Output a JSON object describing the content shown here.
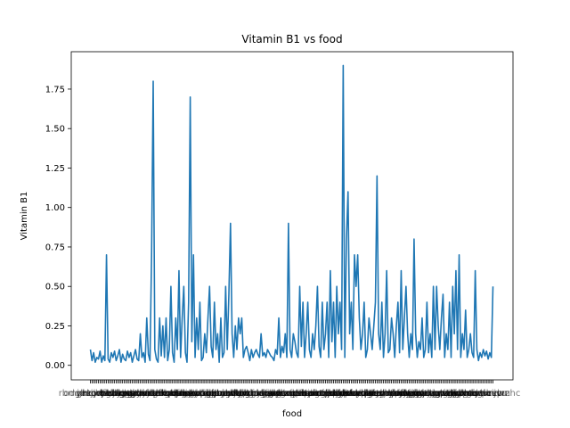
{
  "chart_data": {
    "type": "line",
    "title": "Vitamin B1 vs food",
    "xlabel": "food",
    "ylabel": "Vitamin B1",
    "ylim": [
      -0.092,
      1.987
    ],
    "y_ticks": [
      "0.00",
      "0.25",
      "0.50",
      "0.75",
      "1.00",
      "1.25",
      "1.50",
      "1.75"
    ],
    "grid": false,
    "legend": "none",
    "color": "#1f77b4",
    "x_tick_labels_note": "",
    "series": [
      {
        "values": [
          0.1,
          0.03,
          0.08,
          0.02,
          0.05,
          0.04,
          0.09,
          0.02,
          0.06,
          0.03,
          0.7,
          0.04,
          0.02,
          0.08,
          0.05,
          0.09,
          0.03,
          0.06,
          0.1,
          0.02,
          0.07,
          0.04,
          0.03,
          0.09,
          0.05,
          0.08,
          0.02,
          0.06,
          0.1,
          0.04,
          0.03,
          0.2,
          0.05,
          0.08,
          0.02,
          0.3,
          0.07,
          0.03,
          0.7,
          1.8,
          0.1,
          0.04,
          0.02,
          0.3,
          0.06,
          0.25,
          0.05,
          0.3,
          0.03,
          0.1,
          0.5,
          0.08,
          0.02,
          0.3,
          0.1,
          0.6,
          0.05,
          0.3,
          0.5,
          0.08,
          0.02,
          0.4,
          1.7,
          0.15,
          0.7,
          0.05,
          0.3,
          0.1,
          0.4,
          0.03,
          0.05,
          0.2,
          0.08,
          0.3,
          0.5,
          0.12,
          0.05,
          0.4,
          0.1,
          0.2,
          0.02,
          0.3,
          0.05,
          0.08,
          0.5,
          0.1,
          0.45,
          0.9,
          0.2,
          0.05,
          0.25,
          0.1,
          0.3,
          0.2,
          0.3,
          0.05,
          0.1,
          0.12,
          0.08,
          0.03,
          0.1,
          0.05,
          0.08,
          0.1,
          0.07,
          0.05,
          0.2,
          0.06,
          0.08,
          0.05,
          0.1,
          0.08,
          0.06,
          0.05,
          0.03,
          0.1,
          0.07,
          0.3,
          0.05,
          0.12,
          0.08,
          0.2,
          0.05,
          0.9,
          0.1,
          0.05,
          0.2,
          0.15,
          0.08,
          0.05,
          0.5,
          0.12,
          0.4,
          0.05,
          0.2,
          0.4,
          0.1,
          0.05,
          0.2,
          0.1,
          0.25,
          0.5,
          0.12,
          0.05,
          0.4,
          0.1,
          0.2,
          0.4,
          0.05,
          0.6,
          0.15,
          0.4,
          0.05,
          0.5,
          0.2,
          0.4,
          0.1,
          1.9,
          0.05,
          0.8,
          1.1,
          0.2,
          0.4,
          0.1,
          0.7,
          0.5,
          0.7,
          0.3,
          0.1,
          0.2,
          0.4,
          0.05,
          0.1,
          0.3,
          0.2,
          0.1,
          0.25,
          0.4,
          1.2,
          0.2,
          0.1,
          0.4,
          0.05,
          0.2,
          0.6,
          0.08,
          0.1,
          0.3,
          0.2,
          0.05,
          0.25,
          0.4,
          0.08,
          0.6,
          0.1,
          0.3,
          0.5,
          0.2,
          0.05,
          0.2,
          0.1,
          0.8,
          0.2,
          0.05,
          0.15,
          0.1,
          0.3,
          0.05,
          0.1,
          0.4,
          0.08,
          0.2,
          0.05,
          0.5,
          0.1,
          0.5,
          0.25,
          0.1,
          0.3,
          0.45,
          0.05,
          0.2,
          0.1,
          0.4,
          0.05,
          0.5,
          0.2,
          0.6,
          0.1,
          0.7,
          0.05,
          0.2,
          0.1,
          0.35,
          0.05,
          0.1,
          0.2,
          0.08,
          0.05,
          0.6,
          0.1,
          0.03,
          0.08,
          0.05,
          0.1,
          0.06,
          0.09,
          0.04,
          0.08,
          0.05,
          0.5
        ]
      }
    ]
  }
}
